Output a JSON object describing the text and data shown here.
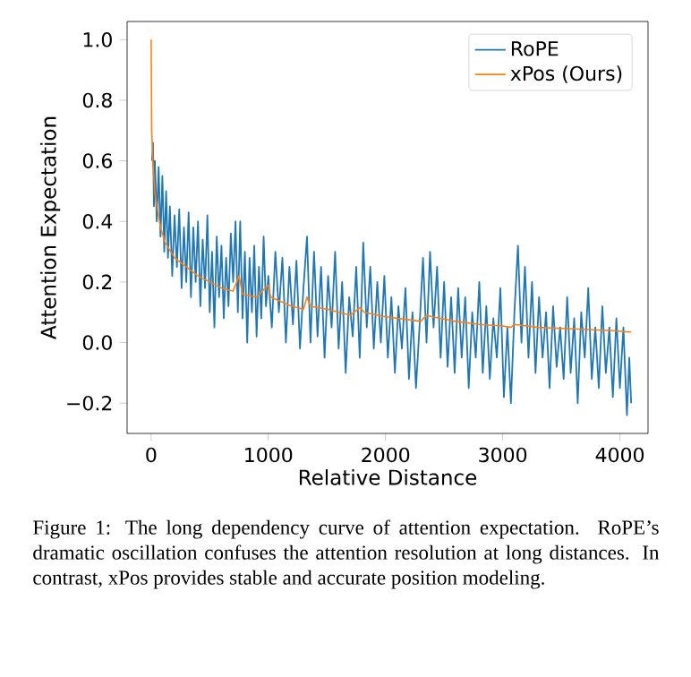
{
  "chart_data": {
    "type": "line",
    "xlabel": "Relative Distance",
    "ylabel": "Attention Expectation",
    "xlim": [
      -205,
      4240
    ],
    "ylim": [
      -0.3,
      1.06
    ],
    "xticks": [
      0,
      1000,
      2000,
      3000,
      4000
    ],
    "yticks": [
      {
        "value": -0.2,
        "label": "−0.2"
      },
      {
        "value": 0.0,
        "label": "0.0"
      },
      {
        "value": 0.2,
        "label": "0.2"
      },
      {
        "value": 0.4,
        "label": "0.4"
      },
      {
        "value": 0.6,
        "label": "0.6"
      },
      {
        "value": 0.8,
        "label": "0.8"
      },
      {
        "value": 1.0,
        "label": "1.0"
      }
    ],
    "legend": "top right",
    "marker": "none",
    "line_style": "solid",
    "series": [
      {
        "name": "RoPE",
        "color": "#1f77b4",
        "x": [
          8,
          16,
          24,
          32,
          48,
          64,
          80,
          96,
          112,
          128,
          144,
          160,
          180,
          200,
          220,
          240,
          260,
          280,
          300,
          320,
          340,
          360,
          380,
          400,
          420,
          440,
          460,
          480,
          500,
          520,
          540,
          560,
          580,
          600,
          620,
          640,
          660,
          680,
          700,
          720,
          740,
          760,
          780,
          800,
          820,
          840,
          860,
          880,
          900,
          920,
          940,
          960,
          980,
          1000,
          1030,
          1060,
          1090,
          1120,
          1150,
          1180,
          1210,
          1240,
          1270,
          1300,
          1330,
          1360,
          1390,
          1420,
          1450,
          1480,
          1510,
          1540,
          1570,
          1600,
          1630,
          1660,
          1690,
          1720,
          1750,
          1780,
          1810,
          1840,
          1870,
          1900,
          1930,
          1960,
          1990,
          2020,
          2050,
          2080,
          2110,
          2140,
          2170,
          2200,
          2230,
          2260,
          2290,
          2320,
          2350,
          2380,
          2410,
          2440,
          2470,
          2500,
          2530,
          2560,
          2590,
          2620,
          2650,
          2680,
          2710,
          2740,
          2770,
          2800,
          2830,
          2860,
          2890,
          2920,
          2950,
          2980,
          3010,
          3040,
          3070,
          3100,
          3130,
          3160,
          3190,
          3220,
          3250,
          3280,
          3310,
          3340,
          3370,
          3400,
          3430,
          3460,
          3490,
          3520,
          3550,
          3580,
          3610,
          3640,
          3670,
          3700,
          3730,
          3760,
          3790,
          3820,
          3850,
          3880,
          3910,
          3940,
          3970,
          4000,
          4030,
          4060,
          4080,
          4096
        ],
        "values": [
          0.6,
          0.66,
          0.45,
          0.6,
          0.4,
          0.58,
          0.35,
          0.55,
          0.3,
          0.5,
          0.28,
          0.45,
          0.22,
          0.42,
          0.25,
          0.44,
          0.18,
          0.38,
          0.2,
          0.43,
          0.15,
          0.38,
          0.2,
          0.4,
          0.12,
          0.34,
          0.18,
          0.42,
          0.1,
          0.3,
          0.05,
          0.35,
          0.15,
          0.32,
          0.08,
          0.28,
          0.12,
          0.36,
          0.2,
          0.4,
          0.1,
          0.4,
          0.08,
          0.3,
          0.0,
          0.28,
          0.1,
          0.32,
          0.02,
          0.25,
          0.08,
          0.35,
          0.12,
          0.22,
          0.05,
          0.3,
          0.1,
          0.28,
          0.0,
          0.25,
          0.06,
          0.27,
          -0.02,
          0.18,
          0.35,
          0.0,
          0.3,
          0.02,
          0.25,
          -0.05,
          0.22,
          0.05,
          0.3,
          -0.02,
          0.2,
          -0.1,
          0.15,
          0.02,
          0.25,
          -0.05,
          0.33,
          0.05,
          0.25,
          -0.02,
          0.2,
          0.0,
          0.22,
          -0.05,
          0.15,
          -0.1,
          0.12,
          -0.02,
          0.18,
          -0.12,
          0.1,
          -0.15,
          0.05,
          0.28,
          0.0,
          0.3,
          0.05,
          0.25,
          -0.05,
          0.2,
          -0.08,
          0.15,
          -0.1,
          0.18,
          -0.05,
          0.15,
          -0.15,
          0.1,
          -0.05,
          0.2,
          -0.1,
          0.12,
          -0.12,
          0.08,
          -0.05,
          0.18,
          -0.18,
          0.05,
          -0.2,
          0.1,
          0.32,
          0.0,
          0.25,
          -0.05,
          0.2,
          -0.1,
          0.15,
          -0.05,
          0.1,
          -0.15,
          0.12,
          -0.08,
          0.05,
          -0.12,
          0.15,
          -0.1,
          0.08,
          -0.2,
          0.1,
          -0.05,
          0.18,
          -0.12,
          0.05,
          -0.15,
          0.12,
          -0.1,
          0.05,
          -0.18,
          0.08,
          -0.15,
          0.05,
          -0.24,
          -0.05,
          -0.2
        ]
      },
      {
        "name": "xPos (Ours)",
        "color": "#ff7f0e",
        "x": [
          0,
          5,
          15,
          30,
          50,
          80,
          120,
          200,
          300,
          400,
          500,
          600,
          700,
          750,
          780,
          900,
          1000,
          1020,
          1200,
          1300,
          1330,
          1360,
          1500,
          1700,
          1780,
          1820,
          2000,
          2200,
          2300,
          2350,
          2400,
          2600,
          2800,
          3000,
          3070,
          3100,
          3300,
          3600,
          3900,
          4096
        ],
        "values": [
          1.0,
          0.7,
          0.6,
          0.5,
          0.45,
          0.38,
          0.33,
          0.28,
          0.25,
          0.22,
          0.2,
          0.18,
          0.17,
          0.22,
          0.16,
          0.15,
          0.19,
          0.15,
          0.12,
          0.11,
          0.15,
          0.12,
          0.11,
          0.09,
          0.115,
          0.1,
          0.085,
          0.075,
          0.07,
          0.09,
          0.085,
          0.07,
          0.06,
          0.055,
          0.05,
          0.06,
          0.05,
          0.045,
          0.04,
          0.035
        ]
      }
    ],
    "annotations": [
      "Figure 1: The long dependency curve of attention expectation. RoPE’s dramatic oscillation confuses the attention resolution at long distances. In contrast, xPos provides stable and accurate position modeling."
    ]
  }
}
